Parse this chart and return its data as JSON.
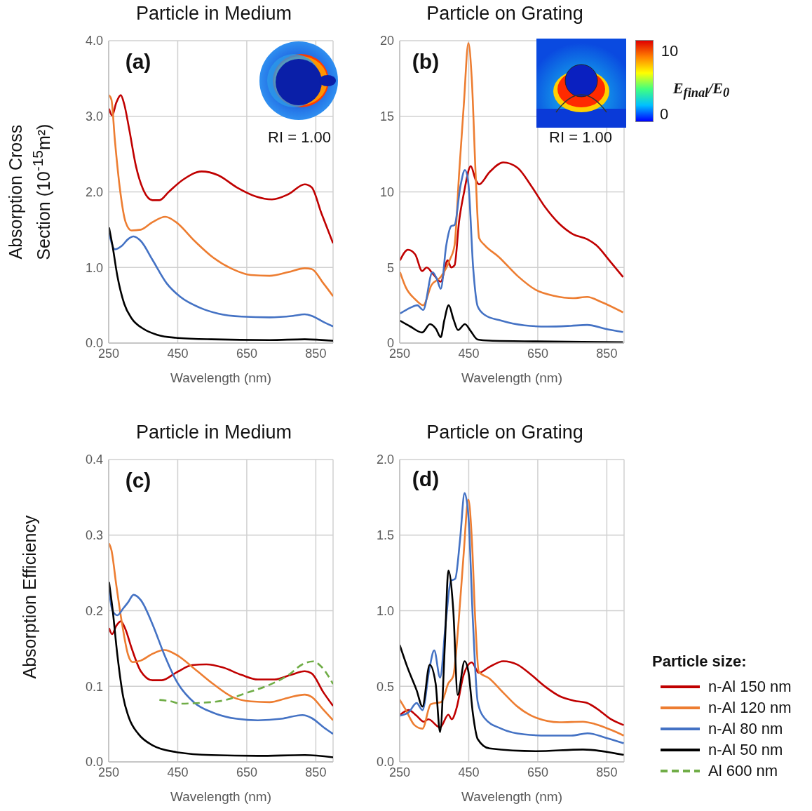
{
  "chart_data": [
    {
      "type": "line",
      "title": "Particle in Medium",
      "xlabel": "Wavelength (nm)",
      "ylabel": "Absorption Cross Section (10$^{-15}$m²)",
      "annotations": [
        "(a)",
        "RI = 1.00"
      ],
      "xlim": [
        250,
        900
      ],
      "xticks": [
        250,
        450,
        650,
        850
      ],
      "ylim": [
        0,
        4
      ],
      "yticks": [
        {
          "value": 0,
          "label": "0.0"
        },
        {
          "value": 1,
          "label": "1.0"
        },
        {
          "value": 2,
          "label": "2.0"
        },
        {
          "value": 3,
          "label": "3.0"
        },
        {
          "value": 4,
          "label": "4.0"
        }
      ],
      "grid": true,
      "marker": "none",
      "series": [
        {
          "color": "#c00000",
          "x": [
            251,
            260,
            272,
            285,
            295,
            309,
            329,
            350,
            377,
            397,
            424,
            465,
            519,
            567,
            621,
            676,
            723,
            771,
            818,
            838,
            866,
            900
          ],
          "values": [
            3.1,
            3.01,
            3.18,
            3.28,
            3.16,
            2.84,
            2.34,
            2.03,
            1.89,
            1.89,
            2.0,
            2.16,
            2.27,
            2.22,
            2.06,
            1.94,
            1.9,
            1.97,
            2.1,
            2.06,
            1.72,
            1.32
          ]
        },
        {
          "color": "#ed7d31",
          "x": [
            251,
            258,
            268,
            282,
            299,
            316,
            343,
            377,
            414,
            445,
            499,
            553,
            608,
            662,
            716,
            771,
            818,
            838,
            872,
            900
          ],
          "values": [
            3.28,
            3.22,
            2.68,
            2.06,
            1.6,
            1.49,
            1.5,
            1.6,
            1.67,
            1.6,
            1.35,
            1.13,
            0.98,
            0.9,
            0.89,
            0.94,
            0.99,
            0.98,
            0.79,
            0.62
          ]
        },
        {
          "color": "#4472c4",
          "x": [
            251,
            268,
            289,
            305,
            322,
            343,
            377,
            418,
            458,
            513,
            567,
            635,
            716,
            784,
            818,
            838,
            872,
            900
          ],
          "values": [
            1.46,
            1.24,
            1.29,
            1.37,
            1.41,
            1.35,
            1.1,
            0.79,
            0.61,
            0.47,
            0.39,
            0.35,
            0.34,
            0.36,
            0.38,
            0.36,
            0.28,
            0.22
          ]
        },
        {
          "color": "#000000",
          "x": [
            251,
            261,
            275,
            295,
            316,
            350,
            390,
            445,
            547,
            716,
            818,
            900
          ],
          "values": [
            1.53,
            1.29,
            0.89,
            0.52,
            0.33,
            0.19,
            0.11,
            0.07,
            0.05,
            0.04,
            0.05,
            0.03
          ]
        }
      ]
    },
    {
      "type": "line",
      "title": "Particle on Grating",
      "xlabel": "Wavelength (nm)",
      "annotations": [
        "(b)",
        "RI = 1.00",
        "10",
        "0",
        "E$_{final}$/E$_{0}$"
      ],
      "xlim": [
        250,
        900
      ],
      "xticks": [
        250,
        450,
        650,
        850
      ],
      "ylim": [
        0,
        20
      ],
      "yticks": [
        0,
        5,
        10,
        15,
        20
      ],
      "grid": true,
      "marker": "none",
      "series": [
        {
          "color": "#c00000",
          "x": [
            251,
            274,
            295,
            315,
            328,
            348,
            369,
            389,
            399,
            409,
            422,
            436,
            456,
            470,
            480,
            510,
            550,
            591,
            631,
            671,
            712,
            752,
            793,
            819,
            860,
            897
          ],
          "values": [
            5.47,
            6.17,
            5.86,
            4.76,
            5.0,
            4.53,
            4.06,
            5.47,
            5.0,
            5.15,
            8.04,
            9.92,
            11.7,
            10.8,
            10.5,
            11.3,
            11.95,
            11.6,
            10.4,
            9.0,
            7.9,
            7.2,
            6.87,
            6.48,
            5.39,
            4.37
          ]
        },
        {
          "color": "#ed7d31",
          "x": [
            251,
            268,
            295,
            318,
            342,
            369,
            396,
            409,
            422,
            436,
            449,
            459,
            470,
            480,
            496,
            537,
            591,
            645,
            698,
            752,
            793,
            833,
            897
          ],
          "values": [
            4.69,
            3.67,
            2.89,
            2.5,
            3.83,
            4.37,
            5.55,
            6.48,
            11.17,
            15.86,
            19.84,
            17.4,
            11.17,
            6.95,
            6.48,
            5.7,
            4.45,
            3.51,
            3.12,
            2.97,
            3.05,
            2.73,
            2.03
          ]
        },
        {
          "color": "#4472c4",
          "x": [
            251,
            281,
            301,
            318,
            345,
            358,
            369,
            385,
            399,
            409,
            426,
            439,
            449,
            463,
            476,
            496,
            544,
            611,
            678,
            745,
            793,
            846,
            897
          ],
          "values": [
            1.95,
            2.34,
            2.5,
            2.19,
            4.69,
            4.22,
            3.59,
            6.48,
            7.73,
            7.81,
            10.39,
            11.45,
            10.54,
            4.92,
            2.42,
            1.87,
            1.48,
            1.17,
            1.09,
            1.14,
            1.2,
            0.94,
            0.73
          ]
        },
        {
          "color": "#000000",
          "x": [
            251,
            281,
            315,
            338,
            355,
            369,
            379,
            392,
            406,
            419,
            439,
            456,
            476,
            510,
            645,
            779,
            897
          ],
          "values": [
            1.48,
            1.09,
            0.7,
            1.25,
            0.94,
            0.39,
            1.48,
            2.5,
            1.56,
            0.86,
            1.25,
            0.78,
            0.23,
            0.16,
            0.11,
            0.08,
            0.05
          ]
        }
      ]
    },
    {
      "type": "line",
      "title": "Particle in Medium",
      "xlabel": "Wavelength (nm)",
      "ylabel": "Absorption Efficiency",
      "annotations": [
        "(c)"
      ],
      "legend": "right",
      "legend_title": "Particle size:",
      "xlim": [
        250,
        900
      ],
      "xticks": [
        250,
        450,
        650,
        850
      ],
      "ylim": [
        0,
        0.4
      ],
      "yticks": [
        {
          "value": 0,
          "label": "0.0"
        },
        {
          "value": 0.1,
          "label": "0.1"
        },
        {
          "value": 0.2,
          "label": "0.2"
        },
        {
          "value": 0.3,
          "label": "0.3"
        },
        {
          "value": 0.4,
          "label": "0.4"
        }
      ],
      "grid": true,
      "marker": "none",
      "series": [
        {
          "name": "n-Al 150 nm",
          "color": "#c00000",
          "x": [
            251,
            260,
            272,
            285,
            299,
            316,
            343,
            377,
            404,
            445,
            492,
            533,
            580,
            635,
            682,
            730,
            777,
            818,
            838,
            872,
            900
          ],
          "values": [
            0.177,
            0.169,
            0.18,
            0.186,
            0.175,
            0.151,
            0.12,
            0.108,
            0.108,
            0.118,
            0.128,
            0.129,
            0.125,
            0.115,
            0.109,
            0.109,
            0.115,
            0.12,
            0.117,
            0.092,
            0.074
          ]
        },
        {
          "name": "n-Al 120 nm",
          "color": "#ed7d31",
          "x": [
            251,
            258,
            272,
            289,
            306,
            319,
            343,
            377,
            411,
            445,
            499,
            553,
            608,
            662,
            716,
            771,
            818,
            838,
            872,
            900
          ],
          "values": [
            0.289,
            0.28,
            0.234,
            0.182,
            0.142,
            0.132,
            0.134,
            0.143,
            0.148,
            0.142,
            0.123,
            0.103,
            0.086,
            0.08,
            0.079,
            0.085,
            0.089,
            0.086,
            0.069,
            0.055
          ]
        },
        {
          "name": "n-Al 80 nm",
          "color": "#4472c4",
          "x": [
            251,
            261,
            275,
            292,
            306,
            322,
            343,
            377,
            411,
            445,
            499,
            553,
            621,
            682,
            750,
            811,
            838,
            872,
            900
          ],
          "values": [
            0.228,
            0.2,
            0.194,
            0.203,
            0.211,
            0.221,
            0.214,
            0.182,
            0.142,
            0.108,
            0.078,
            0.065,
            0.057,
            0.055,
            0.057,
            0.062,
            0.058,
            0.046,
            0.037
          ]
        },
        {
          "name": "n-Al 50 nm",
          "color": "#000000",
          "x": [
            251,
            261,
            275,
            292,
            309,
            336,
            377,
            445,
            547,
            682,
            818,
            900
          ],
          "values": [
            0.238,
            0.203,
            0.142,
            0.086,
            0.058,
            0.037,
            0.022,
            0.013,
            0.009,
            0.008,
            0.009,
            0.006
          ]
        },
        {
          "name": "Al 600 nm",
          "color": "#70ad47",
          "line_style": "dashed",
          "x": [
            397,
            431,
            458,
            513,
            580,
            648,
            716,
            771,
            811,
            842,
            866,
            900
          ],
          "values": [
            0.082,
            0.08,
            0.077,
            0.078,
            0.081,
            0.091,
            0.102,
            0.115,
            0.129,
            0.133,
            0.126,
            0.103
          ]
        }
      ]
    },
    {
      "type": "line",
      "title": "Particle on Grating",
      "xlabel": "Wavelength (nm)",
      "annotations": [
        "(d)"
      ],
      "xlim": [
        250,
        900
      ],
      "xticks": [
        250,
        450,
        650,
        850
      ],
      "ylim": [
        0,
        2
      ],
      "yticks": [
        {
          "value": 0,
          "label": "0.0"
        },
        {
          "value": 0.5,
          "label": "0.5"
        },
        {
          "value": 1,
          "label": "1.0"
        },
        {
          "value": 1.5,
          "label": "1.5"
        },
        {
          "value": 2,
          "label": "2.0"
        }
      ],
      "grid": true,
      "marker": "none",
      "series": [
        {
          "color": "#c00000",
          "x": [
            252,
            276,
            299,
            320,
            333,
            367,
            391,
            401,
            415,
            435,
            459,
            479,
            510,
            550,
            591,
            632,
            672,
            713,
            754,
            794,
            822,
            862,
            899
          ],
          "values": [
            0.312,
            0.343,
            0.305,
            0.266,
            0.282,
            0.228,
            0.312,
            0.282,
            0.358,
            0.574,
            0.658,
            0.589,
            0.628,
            0.666,
            0.643,
            0.574,
            0.497,
            0.435,
            0.405,
            0.389,
            0.351,
            0.282,
            0.243
          ]
        },
        {
          "color": "#ed7d31",
          "x": [
            250,
            266,
            293,
            316,
            340,
            371,
            391,
            405,
            421,
            435,
            449,
            459,
            469,
            479,
            510,
            550,
            591,
            645,
            713,
            781,
            815,
            862,
            899
          ],
          "values": [
            0.412,
            0.351,
            0.243,
            0.22,
            0.382,
            0.397,
            0.52,
            0.566,
            0.935,
            1.366,
            1.735,
            1.474,
            0.935,
            0.597,
            0.551,
            0.458,
            0.366,
            0.292,
            0.262,
            0.266,
            0.251,
            0.212,
            0.174
          ]
        },
        {
          "color": "#4472c4",
          "x": [
            250,
            276,
            299,
            316,
            337,
            350,
            367,
            384,
            398,
            411,
            425,
            438,
            449,
            462,
            476,
            496,
            544,
            611,
            679,
            747,
            794,
            849,
            899
          ],
          "values": [
            0.305,
            0.328,
            0.389,
            0.343,
            0.628,
            0.738,
            0.558,
            0.935,
            1.197,
            1.212,
            1.474,
            1.778,
            1.628,
            0.935,
            0.397,
            0.289,
            0.22,
            0.182,
            0.174,
            0.174,
            0.189,
            0.158,
            0.123
          ]
        },
        {
          "color": "#000000",
          "x": [
            250,
            272,
            299,
            316,
            337,
            354,
            367,
            381,
            391,
            405,
            418,
            438,
            449,
            462,
            476,
            510,
            645,
            781,
            899
          ],
          "values": [
            0.774,
            0.628,
            0.474,
            0.366,
            0.643,
            0.52,
            0.197,
            0.782,
            1.266,
            1.012,
            0.443,
            0.666,
            0.597,
            0.32,
            0.151,
            0.089,
            0.071,
            0.082,
            0.046
          ]
        }
      ]
    }
  ]
}
